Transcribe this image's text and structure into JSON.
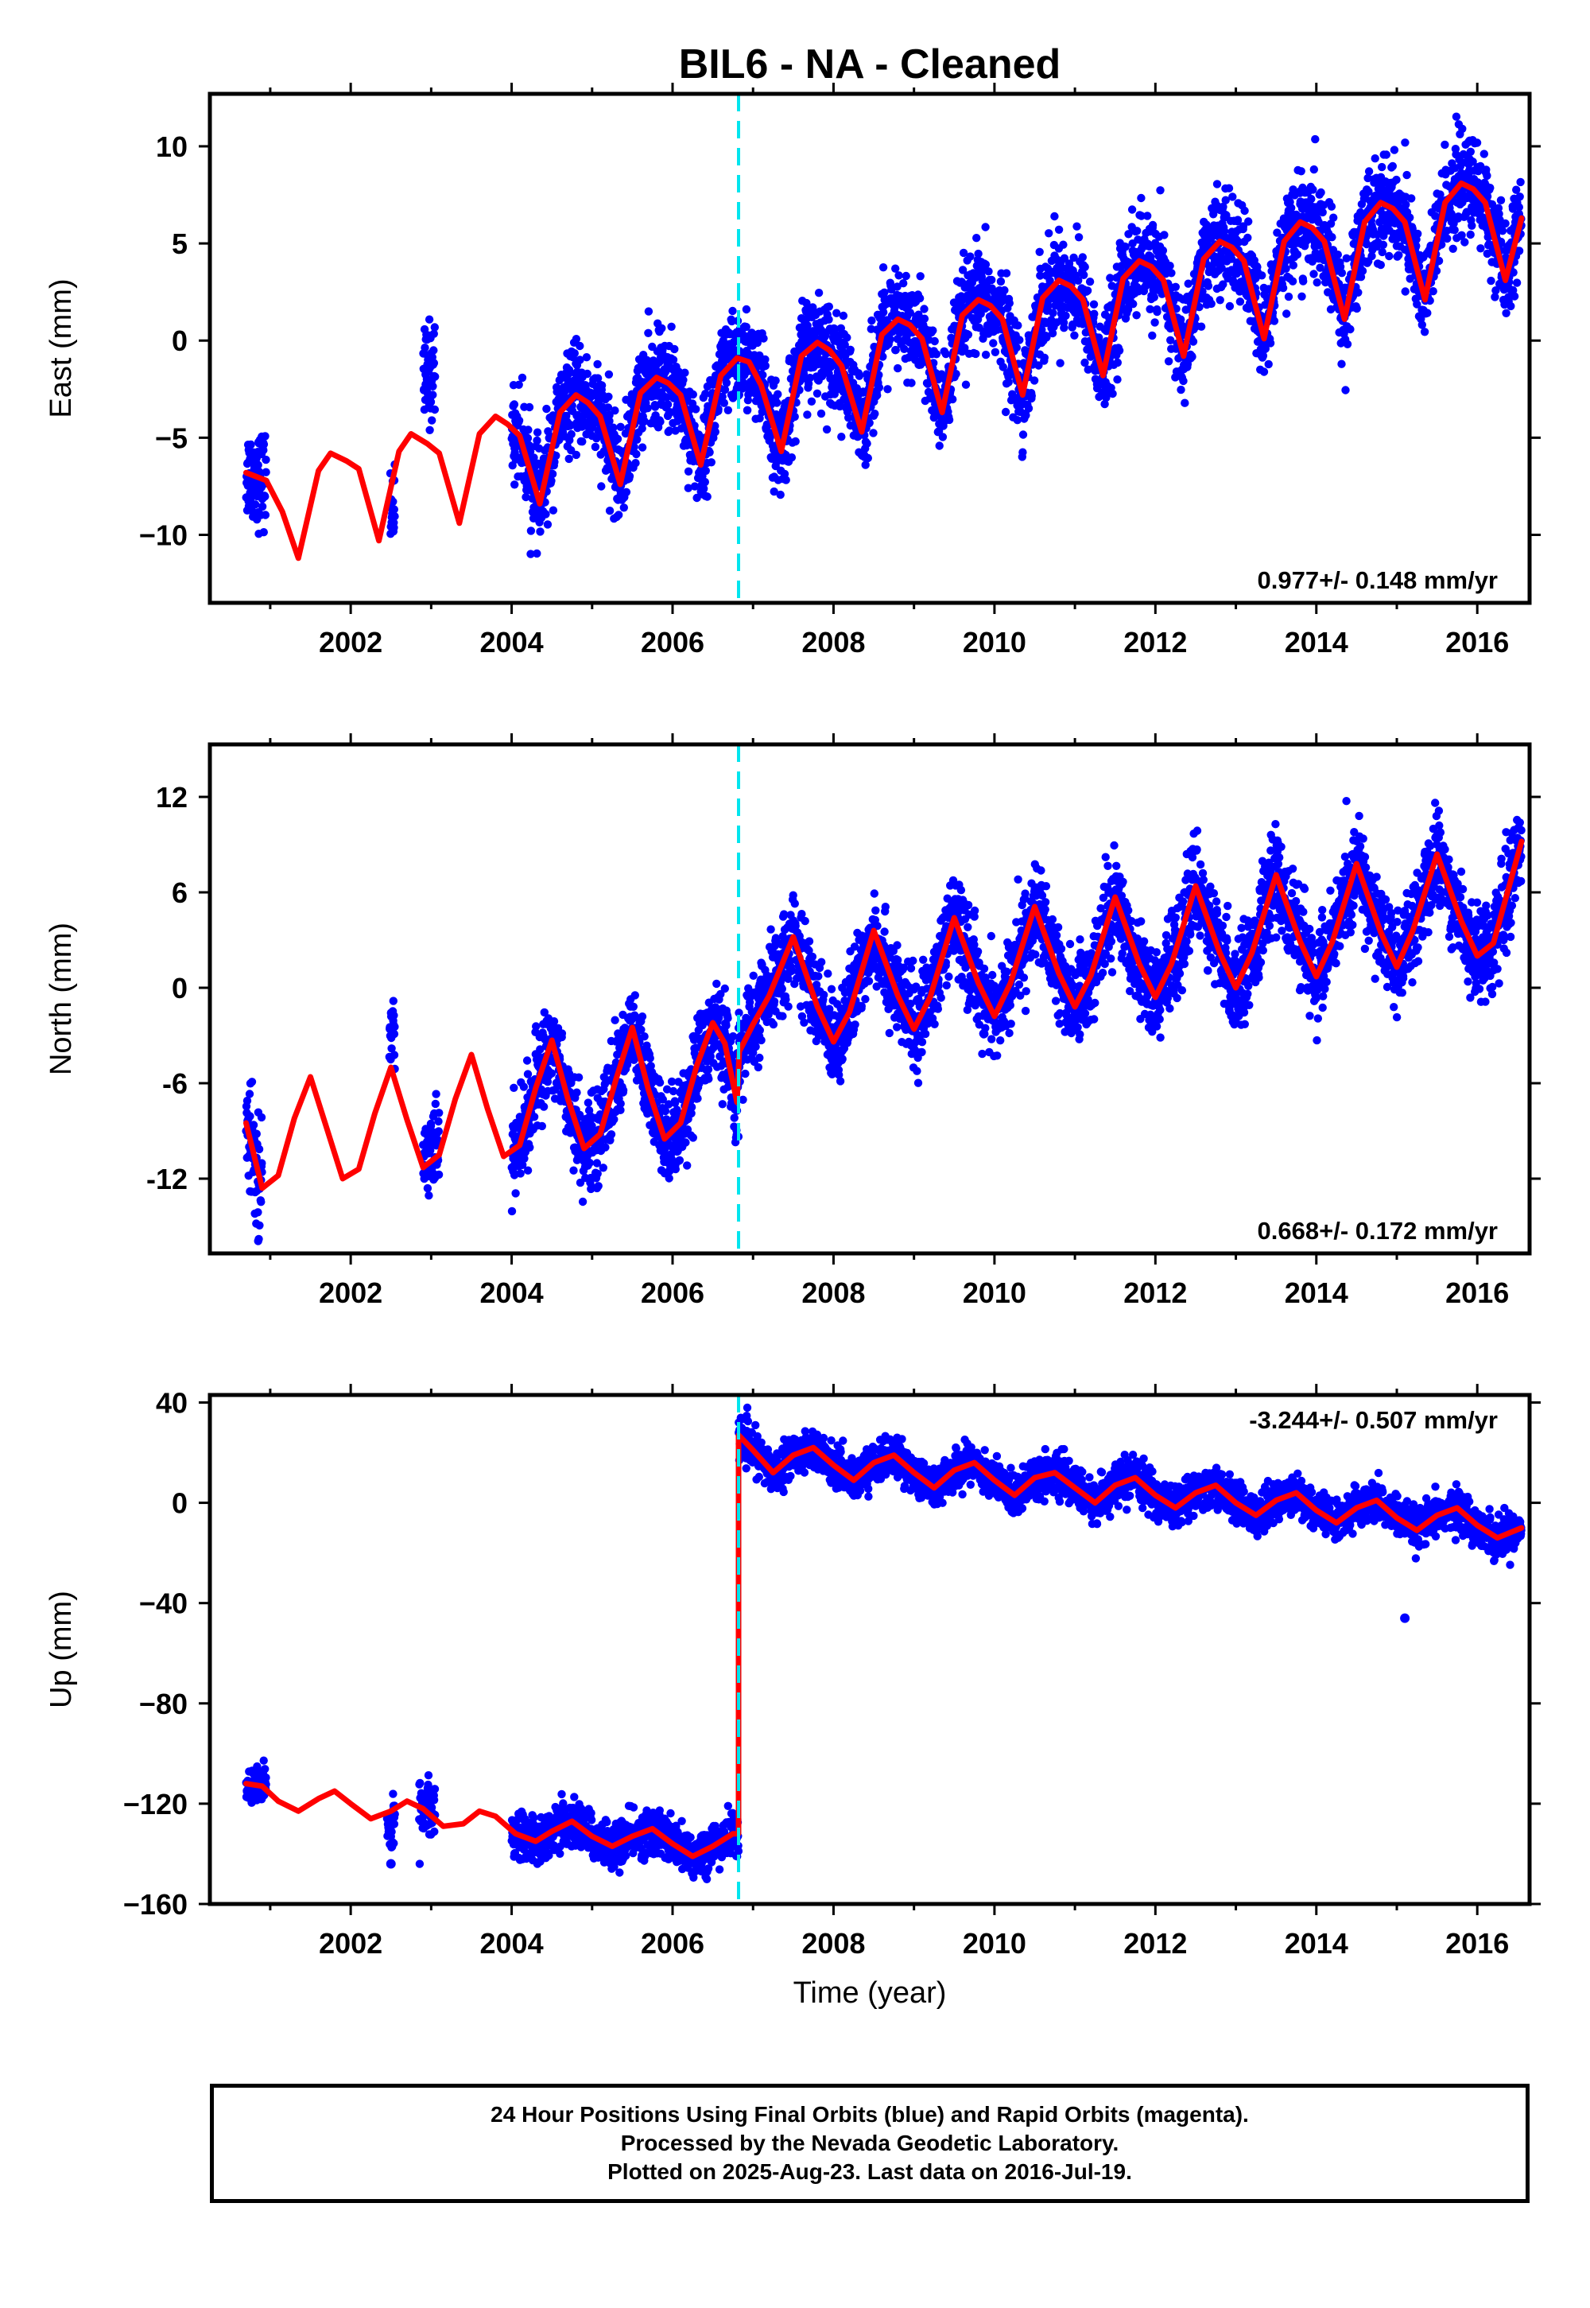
{
  "figure": {
    "title": "BIL6  - NA - Cleaned",
    "xlabel": "Time (year)",
    "footer_lines": [
      "24 Hour Positions Using Final Orbits (blue) and Rapid Orbits (magenta).",
      "Processed by the Nevada Geodetic Laboratory.",
      "Plotted on 2025-Aug-23. Last data on 2016-Jul-19."
    ],
    "colors": {
      "data_points": "#0000ff",
      "model_fit": "#ff0000",
      "equipment_change": "#00e5ee",
      "frame": "#000000"
    }
  },
  "chart_data": [
    {
      "type": "scatter",
      "panel": "east",
      "ylabel": "East (mm)",
      "rate_annotation": "0.977+/- 0.148 mm/yr",
      "rate_position": "bottom-right",
      "xlim": [
        2000.25,
        2016.65
      ],
      "ylim": [
        -13.5,
        12.7
      ],
      "x_ticks": [
        2002,
        2004,
        2006,
        2008,
        2010,
        2012,
        2014,
        2016
      ],
      "y_ticks": [
        -10,
        -5,
        0,
        5,
        10
      ],
      "y_tick_labels": [
        "−10",
        "−5",
        "0",
        "5",
        "10"
      ],
      "offset_epoch": 2006.82,
      "series": [
        {
          "kind": "model_fit",
          "x": [
            2000.7,
            2000.95,
            2001.15,
            2001.35,
            2001.6,
            2001.75,
            2001.95,
            2002.1,
            2002.35,
            2002.6,
            2002.75,
            2002.95,
            2003.1,
            2003.35,
            2003.6,
            2003.8,
            2003.95,
            2004.1,
            2004.35,
            2004.6,
            2004.8,
            2004.95,
            2005.1,
            2005.35,
            2005.6,
            2005.8,
            2005.95,
            2006.1,
            2006.35,
            2006.6,
            2006.8,
            2006.95,
            2007.1,
            2007.35,
            2007.6,
            2007.8,
            2007.95,
            2008.1,
            2008.35,
            2008.6,
            2008.8,
            2008.95,
            2009.1,
            2009.35,
            2009.6,
            2009.8,
            2009.95,
            2010.1,
            2010.35,
            2010.6,
            2010.8,
            2010.95,
            2011.1,
            2011.35,
            2011.6,
            2011.8,
            2011.95,
            2012.1,
            2012.35,
            2012.6,
            2012.8,
            2012.95,
            2013.1,
            2013.35,
            2013.6,
            2013.8,
            2013.95,
            2014.1,
            2014.35,
            2014.6,
            2014.8,
            2014.95,
            2015.1,
            2015.35,
            2015.6,
            2015.8,
            2015.95,
            2016.1,
            2016.35,
            2016.55
          ],
          "y": [
            -6.8,
            -7.2,
            -8.8,
            -11.2,
            -6.7,
            -5.8,
            -6.2,
            -6.6,
            -10.3,
            -5.7,
            -4.8,
            -5.3,
            -5.8,
            -9.4,
            -4.8,
            -3.9,
            -4.3,
            -4.9,
            -8.4,
            -3.7,
            -2.8,
            -3.2,
            -3.9,
            -7.4,
            -2.7,
            -1.9,
            -2.2,
            -2.8,
            -6.4,
            -1.8,
            -0.9,
            -1.1,
            -2.3,
            -5.7,
            -0.8,
            -0.1,
            -0.5,
            -1.3,
            -4.7,
            0.3,
            1.1,
            0.8,
            0.1,
            -3.7,
            1.3,
            2.1,
            1.8,
            1.1,
            -2.8,
            2.2,
            3.1,
            2.8,
            2.1,
            -1.8,
            3.2,
            4.1,
            3.8,
            3.1,
            -0.8,
            4.2,
            5.1,
            4.8,
            4.1,
            0.1,
            5.1,
            6.1,
            5.8,
            5.1,
            1.1,
            6.1,
            7.1,
            6.8,
            6.1,
            2.1,
            7.1,
            8.1,
            7.8,
            7.1,
            3.1,
            6.3
          ]
        },
        {
          "kind": "daily_positions",
          "segments": [
            {
              "x0": 2000.7,
              "x1": 2000.95,
              "trend": [
                -7.5,
                -8.0
              ],
              "amp": 0.8,
              "noise": 1.2
            },
            {
              "x0": 2002.48,
              "x1": 2002.55,
              "trend": [
                -8.5,
                -8.5
              ],
              "amp": 0,
              "noise": 1.0
            },
            {
              "x0": 2002.9,
              "x1": 2003.05,
              "trend": [
                -2.0,
                -1.5
              ],
              "amp": 0,
              "noise": 1.3
            },
            {
              "x0": 2004.0,
              "x1": 2006.82,
              "trend": [
                -4.6,
                -2.4
              ],
              "amp": 2.8,
              "noise": 1.2
            },
            {
              "x0": 2006.82,
              "x1": 2016.55,
              "trend": [
                -1.9,
                6.2
              ],
              "amp": 2.7,
              "noise": 1.25
            }
          ]
        }
      ]
    },
    {
      "type": "scatter",
      "panel": "north",
      "ylabel": "North (mm)",
      "rate_annotation": "0.668+/- 0.172 mm/yr",
      "rate_position": "bottom-right",
      "xlim": [
        2000.25,
        2016.65
      ],
      "ylim": [
        -16.7,
        15.3
      ],
      "x_ticks": [
        2002,
        2004,
        2006,
        2008,
        2010,
        2012,
        2014,
        2016
      ],
      "y_ticks": [
        -12,
        -6,
        0,
        6,
        12
      ],
      "y_tick_labels": [
        "-12",
        "-6",
        "0",
        "6",
        "12"
      ],
      "offset_epoch": 2006.82,
      "series": [
        {
          "kind": "model_fit",
          "x": [
            2000.7,
            2000.9,
            2001.1,
            2001.3,
            2001.5,
            2001.7,
            2001.9,
            2002.1,
            2002.3,
            2002.5,
            2002.7,
            2002.9,
            2003.1,
            2003.3,
            2003.5,
            2003.7,
            2003.9,
            2004.1,
            2004.3,
            2004.5,
            2004.7,
            2004.9,
            2005.1,
            2005.3,
            2005.5,
            2005.7,
            2005.9,
            2006.1,
            2006.3,
            2006.5,
            2006.65,
            2006.8,
            2006.83,
            2007.0,
            2007.2,
            2007.5,
            2007.8,
            2008.0,
            2008.2,
            2008.5,
            2008.8,
            2009.0,
            2009.2,
            2009.5,
            2009.8,
            2010.0,
            2010.2,
            2010.5,
            2010.8,
            2011.0,
            2011.2,
            2011.5,
            2011.8,
            2012.0,
            2012.2,
            2012.5,
            2012.8,
            2013.0,
            2013.2,
            2013.5,
            2013.8,
            2014.0,
            2014.2,
            2014.5,
            2014.8,
            2015.0,
            2015.2,
            2015.5,
            2015.8,
            2016.0,
            2016.2,
            2016.55
          ],
          "y": [
            -8.5,
            -12.6,
            -11.8,
            -8.2,
            -5.6,
            -8.8,
            -12.0,
            -11.4,
            -7.9,
            -5.0,
            -8.3,
            -11.3,
            -10.5,
            -7.0,
            -4.2,
            -7.6,
            -10.6,
            -9.9,
            -6.3,
            -3.3,
            -7.0,
            -10.1,
            -9.2,
            -5.7,
            -2.5,
            -6.4,
            -9.5,
            -8.5,
            -4.9,
            -2.2,
            -3.5,
            -7.2,
            -4.0,
            -2.3,
            -0.5,
            3.2,
            -1.2,
            -3.4,
            -1.5,
            3.6,
            -0.5,
            -2.6,
            -0.6,
            4.4,
            0.3,
            -1.8,
            0.3,
            5.1,
            0.9,
            -1.2,
            0.8,
            5.7,
            1.5,
            -0.6,
            1.5,
            6.4,
            2.2,
            0.0,
            2.2,
            7.1,
            2.9,
            0.7,
            2.9,
            7.8,
            3.5,
            1.3,
            3.6,
            8.4,
            4.2,
            2.0,
            2.8,
            9.2
          ]
        },
        {
          "kind": "daily_positions",
          "segments": [
            {
              "x0": 2000.7,
              "x1": 2000.9,
              "trend": [
                -10.0,
                -13.0
              ],
              "amp": 1.5,
              "noise": 1.6
            },
            {
              "x0": 2002.48,
              "x1": 2002.55,
              "trend": [
                -3.0,
                -3.0
              ],
              "amp": 0,
              "noise": 1.2
            },
            {
              "x0": 2002.9,
              "x1": 2003.1,
              "trend": [
                -10.5,
                -9.5
              ],
              "amp": 0,
              "noise": 1.3
            },
            {
              "x0": 2004.0,
              "x1": 2006.82,
              "trend": [
                -8.5,
                -6.5
              ],
              "amp": 3.5,
              "noise": 1.4
            },
            {
              "x0": 2006.82,
              "x1": 2016.55,
              "trend": [
                -1.4,
                5.5
              ],
              "amp": 3.3,
              "noise": 1.4
            }
          ]
        }
      ]
    },
    {
      "type": "scatter",
      "panel": "up",
      "ylabel": "Up (mm)",
      "rate_annotation": "-3.244+/- 0.507 mm/yr",
      "rate_position": "top-right",
      "xlim": [
        2000.25,
        2016.65
      ],
      "ylim": [
        -160,
        43
      ],
      "x_ticks": [
        2002,
        2004,
        2006,
        2008,
        2010,
        2012,
        2014,
        2016
      ],
      "y_ticks": [
        -160,
        -120,
        -80,
        -40,
        0,
        40
      ],
      "y_tick_labels": [
        "−160",
        "−120",
        "−80",
        "−40",
        "0",
        "40"
      ],
      "offset_epoch": 2006.82,
      "series": [
        {
          "kind": "model_fit",
          "x": [
            2000.7,
            2000.9,
            2001.1,
            2001.35,
            2001.6,
            2001.8,
            2002.0,
            2002.25,
            2002.5,
            2002.7,
            2002.9,
            2003.15,
            2003.4,
            2003.6,
            2003.8,
            2004.05,
            2004.3,
            2004.5,
            2004.75,
            2005.0,
            2005.25,
            2005.5,
            2005.75,
            2006.0,
            2006.25,
            2006.5,
            2006.75,
            2006.82,
            2006.82,
            2007.0,
            2007.25,
            2007.5,
            2007.75,
            2008.0,
            2008.25,
            2008.5,
            2008.75,
            2009.0,
            2009.25,
            2009.5,
            2009.75,
            2010.0,
            2010.25,
            2010.5,
            2010.75,
            2011.0,
            2011.25,
            2011.5,
            2011.75,
            2012.0,
            2012.25,
            2012.5,
            2012.75,
            2013.0,
            2013.25,
            2013.5,
            2013.75,
            2014.0,
            2014.25,
            2014.5,
            2014.75,
            2015.0,
            2015.25,
            2015.5,
            2015.75,
            2016.0,
            2016.25,
            2016.55
          ],
          "y": [
            -112,
            -113,
            -119,
            -123,
            -118,
            -115,
            -120,
            -126,
            -123,
            -119,
            -122,
            -129,
            -128,
            -123,
            -125,
            -132,
            -135,
            -131,
            -127,
            -133,
            -137,
            -133,
            -130,
            -136,
            -141,
            -137,
            -132,
            -132,
            27,
            21,
            12,
            19,
            22,
            15,
            9,
            16,
            19,
            12,
            6,
            13,
            16,
            9,
            3,
            10,
            12,
            6,
            0,
            7,
            10,
            3,
            -2,
            4,
            7,
            0,
            -5,
            1,
            4,
            -3,
            -8,
            -2,
            1,
            -6,
            -11,
            -5,
            -2,
            -9,
            -14,
            -10
          ]
        },
        {
          "kind": "daily_positions",
          "segments": [
            {
              "x0": 2000.7,
              "x1": 2000.95,
              "trend": [
                -114,
                -116
              ],
              "amp": 2,
              "noise": 4
            },
            {
              "x0": 2002.45,
              "x1": 2002.55,
              "trend": [
                -130,
                -130
              ],
              "amp": 0,
              "noise": 6
            },
            {
              "x0": 2002.85,
              "x1": 2003.05,
              "trend": [
                -120,
                -121
              ],
              "amp": 0,
              "noise": 5
            },
            {
              "x0": 2004.0,
              "x1": 2006.82,
              "trend": [
                -125,
                -137
              ],
              "amp": 4,
              "noise": 4.5
            },
            {
              "x0": 2006.82,
              "x1": 2016.55,
              "trend": [
                19,
                -12
              ],
              "amp": 4,
              "noise": 3.8
            }
          ],
          "outliers": [
            {
              "x": 2015.1,
              "y": -46
            },
            {
              "x": 2002.5,
              "y": -144
            }
          ]
        }
      ]
    }
  ]
}
